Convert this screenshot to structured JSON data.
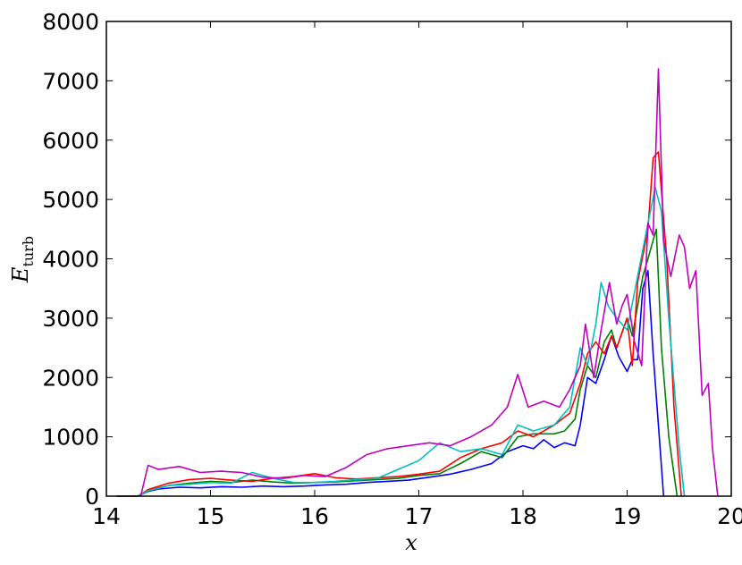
{
  "chart_data": {
    "type": "line",
    "xlabel": "x",
    "ylabel": {
      "main": "E",
      "sub": "turb"
    },
    "xlim": [
      14,
      20
    ],
    "ylim": [
      0,
      8000
    ],
    "x_ticks": [
      "14",
      "15",
      "16",
      "17",
      "18",
      "19",
      "20"
    ],
    "y_ticks": [
      "0",
      "1000",
      "2000",
      "3000",
      "4000",
      "5000",
      "6000",
      "7000",
      "8000"
    ],
    "grid": false,
    "legend": "none",
    "series": [
      {
        "color": "#0000ff",
        "points": [
          [
            14.1,
            0
          ],
          [
            14.3,
            0
          ],
          [
            14.4,
            80
          ],
          [
            14.5,
            120
          ],
          [
            14.7,
            150
          ],
          [
            14.9,
            140
          ],
          [
            15.1,
            160
          ],
          [
            15.3,
            150
          ],
          [
            15.5,
            170
          ],
          [
            15.7,
            160
          ],
          [
            15.9,
            170
          ],
          [
            16.1,
            190
          ],
          [
            16.3,
            200
          ],
          [
            16.5,
            230
          ],
          [
            16.7,
            250
          ],
          [
            16.9,
            270
          ],
          [
            17.1,
            320
          ],
          [
            17.3,
            370
          ],
          [
            17.5,
            450
          ],
          [
            17.7,
            550
          ],
          [
            17.85,
            750
          ],
          [
            18.0,
            850
          ],
          [
            18.1,
            800
          ],
          [
            18.2,
            950
          ],
          [
            18.3,
            820
          ],
          [
            18.4,
            900
          ],
          [
            18.5,
            850
          ],
          [
            18.55,
            1200
          ],
          [
            18.62,
            2000
          ],
          [
            18.7,
            1900
          ],
          [
            18.78,
            2300
          ],
          [
            18.85,
            2700
          ],
          [
            18.92,
            2350
          ],
          [
            19.0,
            2100
          ],
          [
            19.05,
            2300
          ],
          [
            19.1,
            2300
          ],
          [
            19.15,
            3500
          ],
          [
            19.2,
            3800
          ],
          [
            19.25,
            2400
          ],
          [
            19.3,
            1200
          ],
          [
            19.35,
            0
          ]
        ]
      },
      {
        "color": "#008000",
        "points": [
          [
            14.1,
            0
          ],
          [
            14.3,
            0
          ],
          [
            14.4,
            100
          ],
          [
            14.6,
            180
          ],
          [
            14.8,
            220
          ],
          [
            15.0,
            250
          ],
          [
            15.2,
            230
          ],
          [
            15.4,
            270
          ],
          [
            15.6,
            240
          ],
          [
            15.8,
            220
          ],
          [
            16.0,
            230
          ],
          [
            16.2,
            240
          ],
          [
            16.4,
            260
          ],
          [
            16.6,
            280
          ],
          [
            16.8,
            300
          ],
          [
            17.0,
            350
          ],
          [
            17.2,
            380
          ],
          [
            17.4,
            550
          ],
          [
            17.6,
            750
          ],
          [
            17.8,
            650
          ],
          [
            17.95,
            1000
          ],
          [
            18.1,
            1050
          ],
          [
            18.3,
            1050
          ],
          [
            18.4,
            1100
          ],
          [
            18.5,
            1300
          ],
          [
            18.55,
            1800
          ],
          [
            18.62,
            2200
          ],
          [
            18.7,
            2000
          ],
          [
            18.78,
            2600
          ],
          [
            18.85,
            2800
          ],
          [
            18.9,
            2500
          ],
          [
            19.0,
            3000
          ],
          [
            19.05,
            2700
          ],
          [
            19.1,
            3200
          ],
          [
            19.15,
            3700
          ],
          [
            19.2,
            4000
          ],
          [
            19.28,
            4500
          ],
          [
            19.33,
            2500
          ],
          [
            19.4,
            1000
          ],
          [
            19.48,
            0
          ]
        ]
      },
      {
        "color": "#ff0000",
        "points": [
          [
            14.1,
            0
          ],
          [
            14.3,
            0
          ],
          [
            14.4,
            110
          ],
          [
            14.6,
            220
          ],
          [
            14.8,
            280
          ],
          [
            15.0,
            300
          ],
          [
            15.2,
            270
          ],
          [
            15.4,
            250
          ],
          [
            15.6,
            300
          ],
          [
            15.8,
            330
          ],
          [
            16.0,
            380
          ],
          [
            16.2,
            310
          ],
          [
            16.4,
            290
          ],
          [
            16.6,
            310
          ],
          [
            16.8,
            330
          ],
          [
            17.0,
            370
          ],
          [
            17.2,
            420
          ],
          [
            17.4,
            650
          ],
          [
            17.6,
            800
          ],
          [
            17.8,
            900
          ],
          [
            17.95,
            1100
          ],
          [
            18.1,
            1000
          ],
          [
            18.3,
            1200
          ],
          [
            18.45,
            1400
          ],
          [
            18.55,
            1900
          ],
          [
            18.62,
            2400
          ],
          [
            18.7,
            2600
          ],
          [
            18.78,
            2400
          ],
          [
            18.85,
            2700
          ],
          [
            18.9,
            2500
          ],
          [
            19.0,
            3000
          ],
          [
            19.05,
            2200
          ],
          [
            19.1,
            3600
          ],
          [
            19.2,
            4500
          ],
          [
            19.25,
            5700
          ],
          [
            19.3,
            5800
          ],
          [
            19.38,
            4000
          ],
          [
            19.45,
            1500
          ],
          [
            19.52,
            0
          ]
        ]
      },
      {
        "color": "#00bfbf",
        "points": [
          [
            14.1,
            0
          ],
          [
            14.3,
            0
          ],
          [
            14.4,
            90
          ],
          [
            14.6,
            180
          ],
          [
            14.8,
            200
          ],
          [
            15.0,
            230
          ],
          [
            15.2,
            220
          ],
          [
            15.4,
            400
          ],
          [
            15.6,
            300
          ],
          [
            15.8,
            230
          ],
          [
            16.0,
            230
          ],
          [
            16.2,
            250
          ],
          [
            16.4,
            280
          ],
          [
            16.6,
            300
          ],
          [
            16.8,
            450
          ],
          [
            17.0,
            600
          ],
          [
            17.2,
            900
          ],
          [
            17.4,
            750
          ],
          [
            17.6,
            800
          ],
          [
            17.8,
            700
          ],
          [
            17.95,
            1200
          ],
          [
            18.1,
            1100
          ],
          [
            18.3,
            1200
          ],
          [
            18.45,
            1500
          ],
          [
            18.55,
            2500
          ],
          [
            18.62,
            2200
          ],
          [
            18.7,
            2900
          ],
          [
            18.75,
            3600
          ],
          [
            18.82,
            3200
          ],
          [
            18.9,
            3000
          ],
          [
            19.0,
            2800
          ],
          [
            19.1,
            3700
          ],
          [
            19.2,
            4600
          ],
          [
            19.27,
            5200
          ],
          [
            19.33,
            4800
          ],
          [
            19.4,
            3000
          ],
          [
            19.5,
            800
          ],
          [
            19.55,
            0
          ]
        ]
      },
      {
        "color": "#bf00bf",
        "points": [
          [
            14.1,
            0
          ],
          [
            14.33,
            0
          ],
          [
            14.4,
            520
          ],
          [
            14.5,
            450
          ],
          [
            14.7,
            500
          ],
          [
            14.9,
            400
          ],
          [
            15.1,
            420
          ],
          [
            15.3,
            400
          ],
          [
            15.5,
            320
          ],
          [
            15.7,
            300
          ],
          [
            15.9,
            350
          ],
          [
            16.1,
            330
          ],
          [
            16.3,
            480
          ],
          [
            16.5,
            700
          ],
          [
            16.7,
            800
          ],
          [
            16.9,
            850
          ],
          [
            17.1,
            900
          ],
          [
            17.3,
            850
          ],
          [
            17.5,
            1000
          ],
          [
            17.7,
            1200
          ],
          [
            17.85,
            1500
          ],
          [
            17.95,
            2050
          ],
          [
            18.05,
            1500
          ],
          [
            18.2,
            1600
          ],
          [
            18.35,
            1500
          ],
          [
            18.45,
            1800
          ],
          [
            18.55,
            2200
          ],
          [
            18.6,
            2900
          ],
          [
            18.68,
            2000
          ],
          [
            18.75,
            2800
          ],
          [
            18.83,
            3600
          ],
          [
            18.9,
            2900
          ],
          [
            18.95,
            3200
          ],
          [
            19.0,
            3400
          ],
          [
            19.07,
            2600
          ],
          [
            19.14,
            2200
          ],
          [
            19.2,
            4600
          ],
          [
            19.25,
            4400
          ],
          [
            19.3,
            7200
          ],
          [
            19.35,
            4300
          ],
          [
            19.42,
            3700
          ],
          [
            19.5,
            4400
          ],
          [
            19.55,
            4200
          ],
          [
            19.6,
            3500
          ],
          [
            19.66,
            3800
          ],
          [
            19.72,
            1700
          ],
          [
            19.78,
            1900
          ],
          [
            19.82,
            800
          ],
          [
            19.87,
            0
          ]
        ]
      }
    ]
  }
}
